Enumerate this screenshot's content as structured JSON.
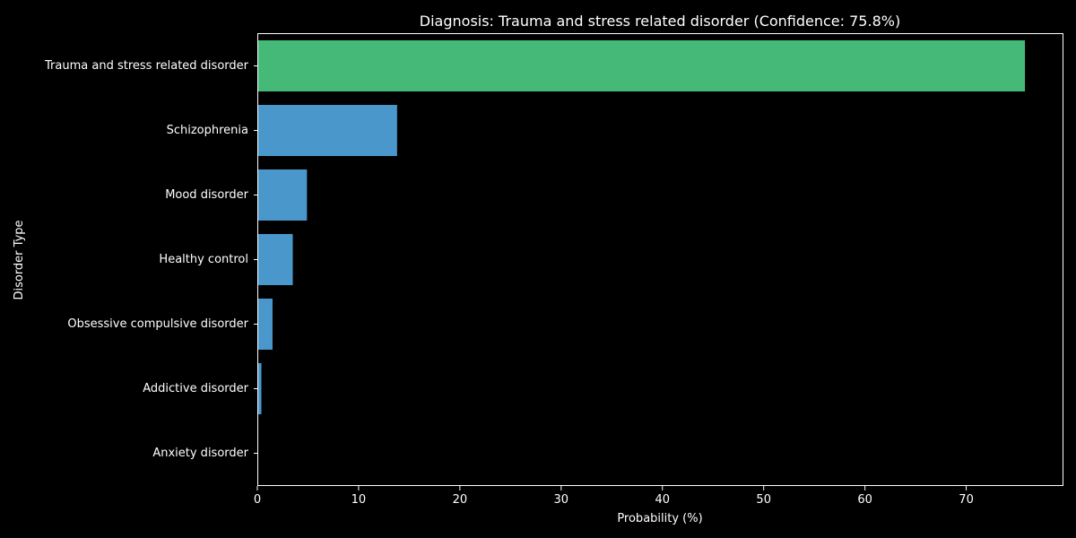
{
  "chart_data": {
    "type": "bar",
    "orientation": "horizontal",
    "title": "Diagnosis: Trauma and stress related disorder (Confidence: 75.8%)",
    "xlabel": "Probability (%)",
    "ylabel": "Disorder Type",
    "xlim": [
      0,
      79.6
    ],
    "x_ticks": [
      0,
      10,
      20,
      30,
      40,
      50,
      60,
      70
    ],
    "grid": false,
    "legend": "none",
    "categories": [
      "Trauma and stress related disorder",
      "Schizophrenia",
      "Mood disorder",
      "Healthy control",
      "Obsessive compulsive disorder",
      "Addictive disorder",
      "Anxiety disorder"
    ],
    "values": [
      75.8,
      13.8,
      4.9,
      3.5,
      1.5,
      0.4,
      0.0
    ],
    "colors": {
      "highlight": "#45BA78",
      "default": "#4A97CC",
      "background": "#000000",
      "axis": "#ffffff"
    },
    "highlight_index": 0
  }
}
